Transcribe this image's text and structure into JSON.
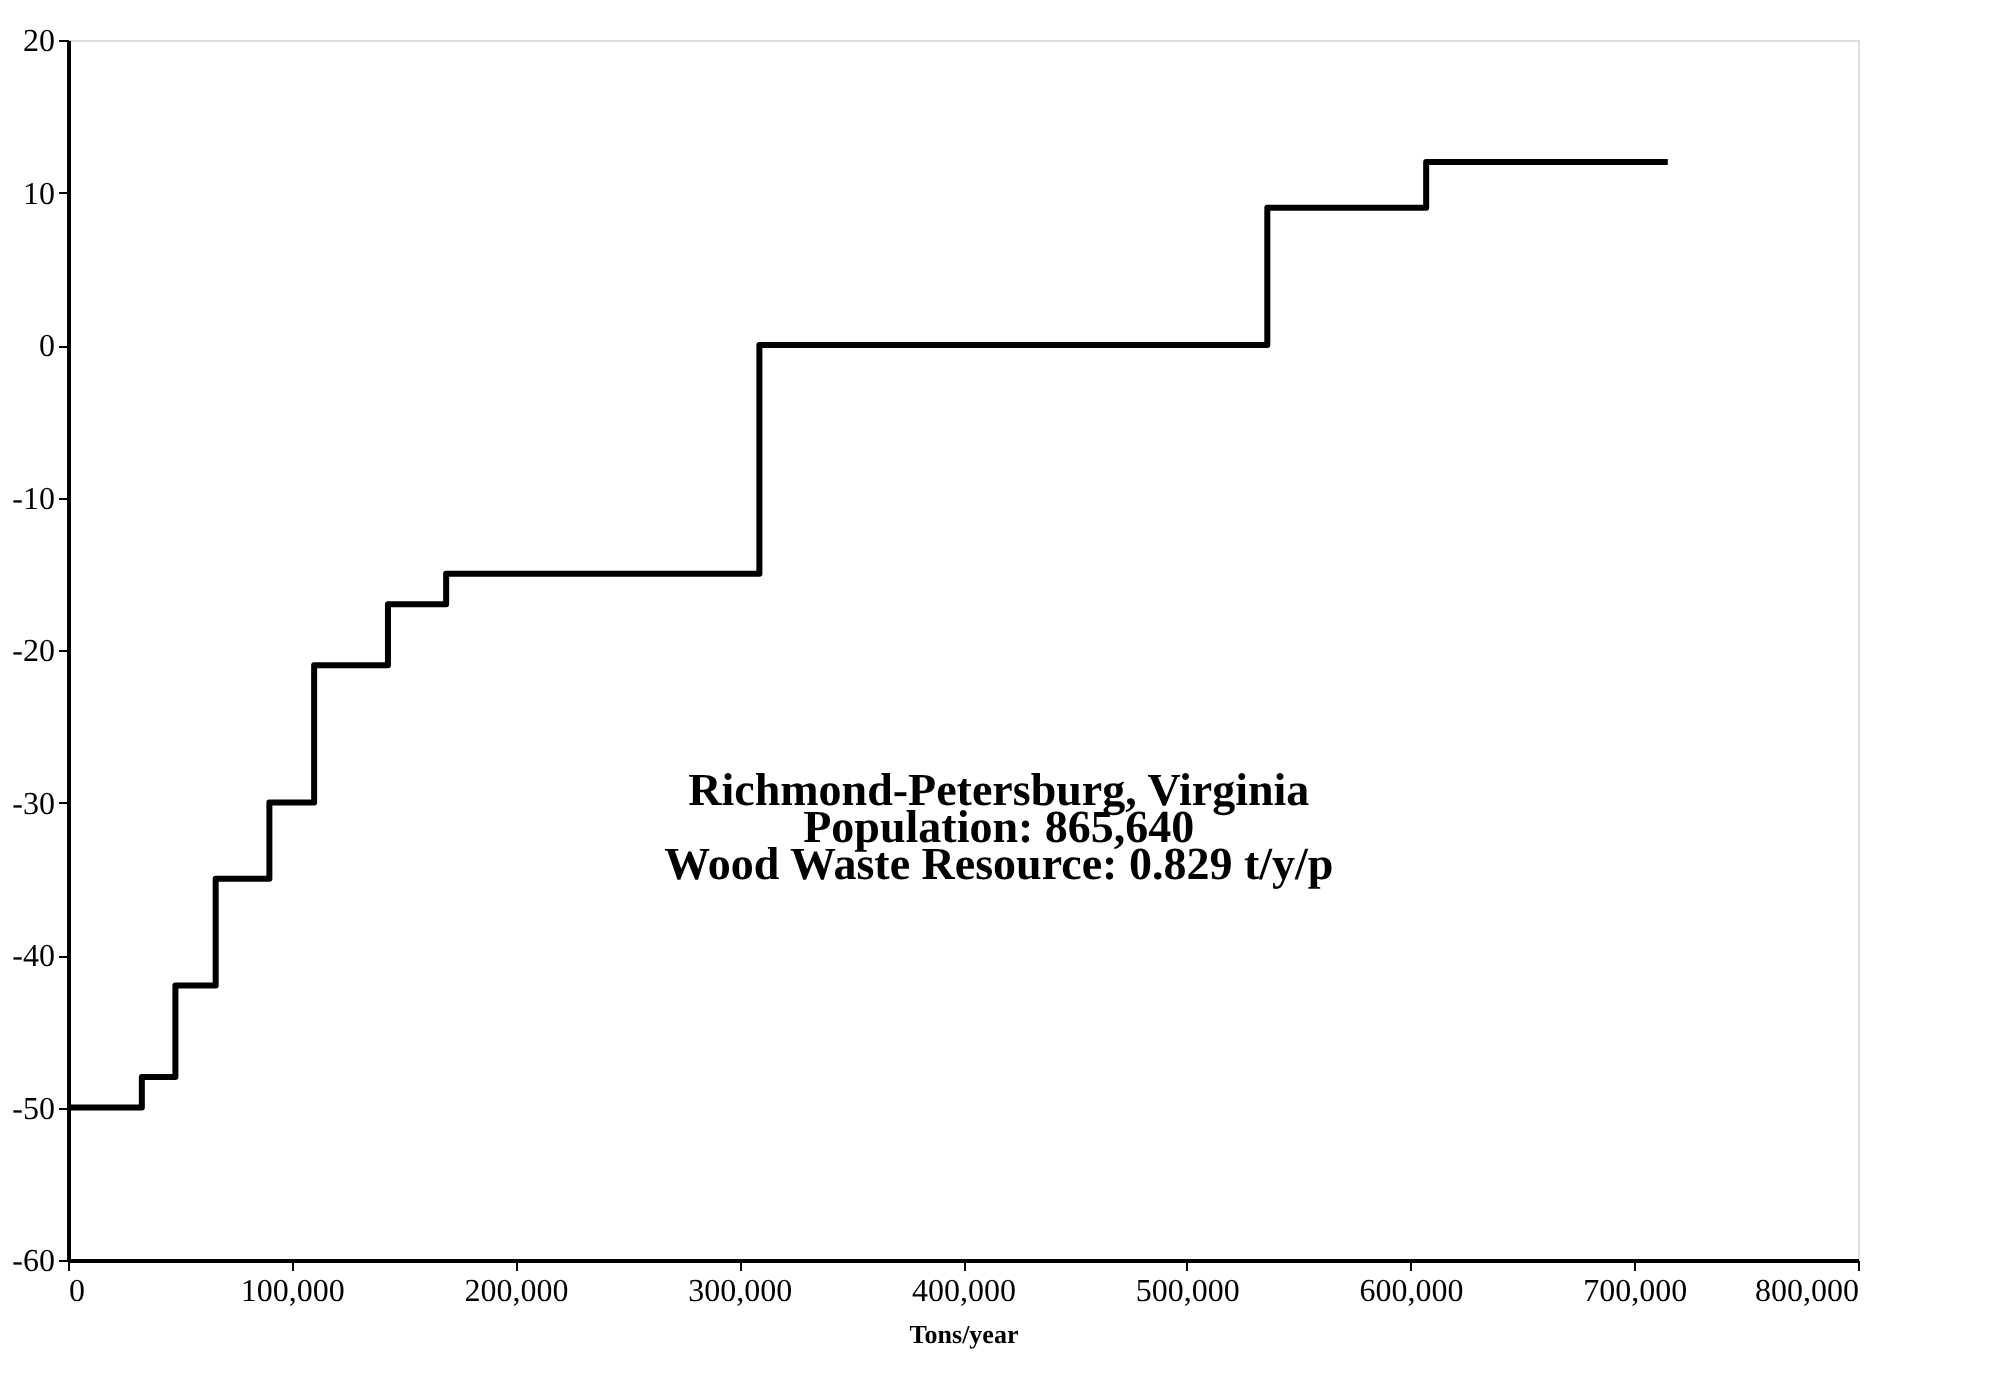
{
  "chart_data": {
    "type": "step",
    "xlabel": "Tons/year",
    "x": [
      0,
      33000,
      48000,
      66000,
      90000,
      110000,
      143000,
      169000,
      309000,
      536000,
      607000,
      715000
    ],
    "series": [
      {
        "color": "#000000",
        "values": [
          -50,
          -48,
          -42,
          -35,
          -30,
          -21,
          -17,
          -15,
          0,
          9,
          12,
          12
        ]
      }
    ],
    "xlim": [
      0,
      800000
    ],
    "xticks": [
      {
        "value": 0,
        "label": "0"
      },
      {
        "value": 100000,
        "label": "100,000"
      },
      {
        "value": 200000,
        "label": "200,000"
      },
      {
        "value": 300000,
        "label": "300,000"
      },
      {
        "value": 400000,
        "label": "400,000"
      },
      {
        "value": 500000,
        "label": "500,000"
      },
      {
        "value": 600000,
        "label": "600,000"
      },
      {
        "value": 700000,
        "label": "700,000"
      },
      {
        "value": 800000,
        "label": "800,000"
      }
    ],
    "ylim": [
      -60,
      20
    ],
    "yticks": [
      -60,
      -50,
      -40,
      -30,
      -20,
      -10,
      0,
      10,
      20
    ],
    "annotations": [
      "Richmond-Petersburg, Virginia",
      "Population:  865,640",
      "Wood Waste Resource:  0.829 t/y/p"
    ],
    "grid": false,
    "marker": "none",
    "line_style": "solid"
  }
}
